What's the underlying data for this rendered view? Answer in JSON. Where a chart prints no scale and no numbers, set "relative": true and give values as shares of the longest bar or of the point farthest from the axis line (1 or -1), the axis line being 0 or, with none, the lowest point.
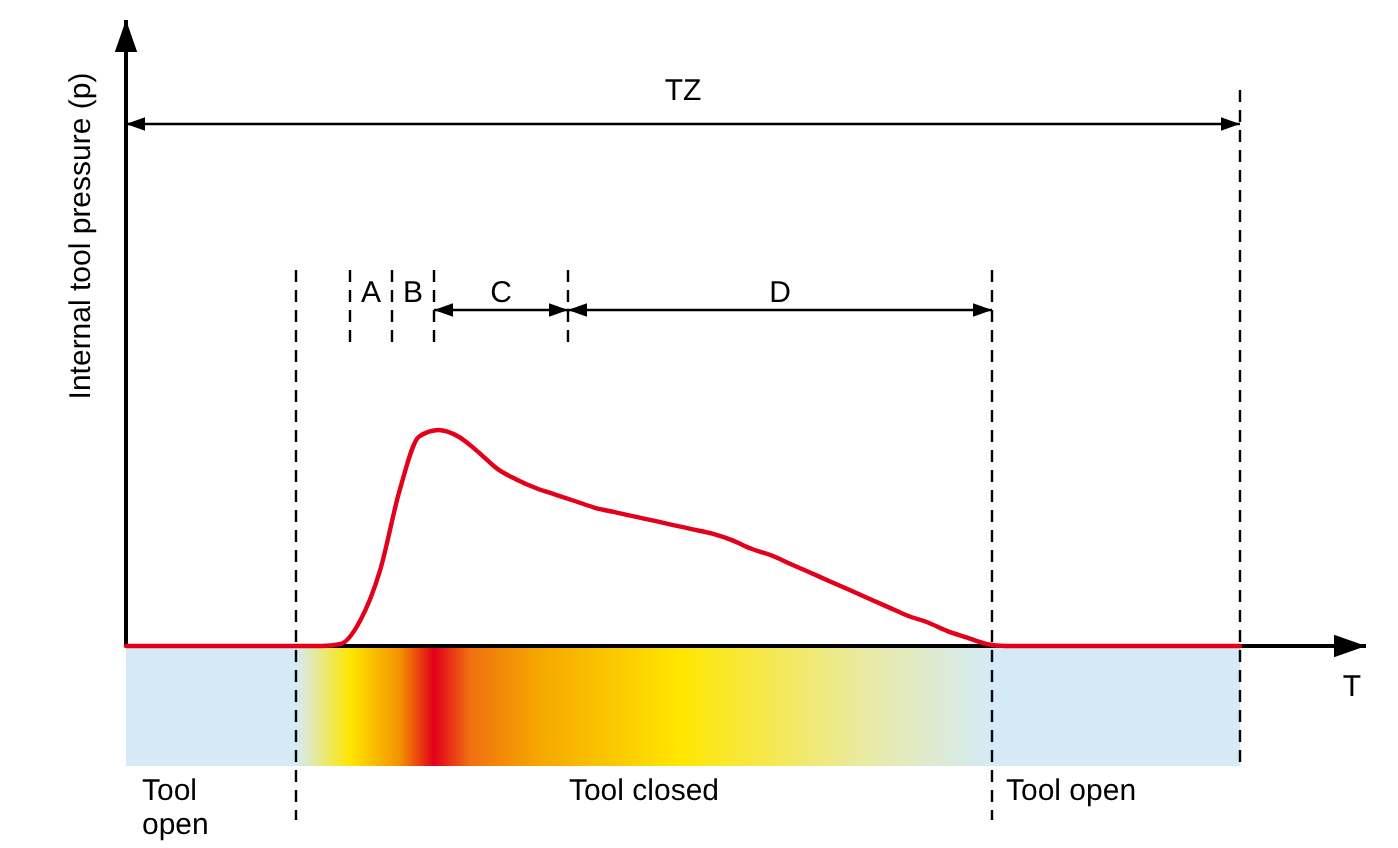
{
  "chart_data": {
    "type": "line",
    "relative": true,
    "xlabel": "T",
    "ylabel": "Internal tool pressure (p)",
    "categories": [
      null,
      null,
      null,
      null,
      null,
      null,
      null,
      null,
      null,
      null,
      null,
      null,
      null,
      null,
      null,
      null,
      null,
      null,
      null,
      null,
      null,
      null,
      null,
      null,
      null,
      null,
      null,
      null,
      null,
      null,
      null,
      null,
      null,
      null,
      null,
      null,
      null,
      null,
      null,
      null,
      null,
      null,
      null,
      null,
      null,
      null,
      null,
      null,
      null,
      null,
      null,
      null,
      null,
      null,
      null,
      null,
      null,
      null
    ],
    "series": [
      {
        "color": "#e2001a",
        "values": [
          0,
          0,
          0,
          0,
          0,
          0,
          0,
          0,
          0,
          0,
          0,
          0.01,
          0.12,
          0.35,
          0.72,
          0.97,
          1.0,
          0.97,
          0.9,
          0.82,
          0.77,
          0.73,
          0.7,
          0.67,
          0.64,
          0.62,
          0.6,
          0.58,
          0.56,
          0.54,
          0.52,
          0.49,
          0.45,
          0.42,
          0.38,
          0.34,
          0.3,
          0.26,
          0.22,
          0.18,
          0.14,
          0.11,
          0.07,
          0.04,
          0.01,
          0,
          0,
          0,
          0,
          0,
          0,
          0,
          0,
          0,
          0,
          0,
          0,
          0
        ]
      }
    ],
    "marker": "none",
    "line_style": "solid",
    "annotations": [
      "TZ",
      "A",
      "B",
      "C",
      "D",
      "Tool open",
      "Tool closed",
      "Tool open"
    ]
  }
}
